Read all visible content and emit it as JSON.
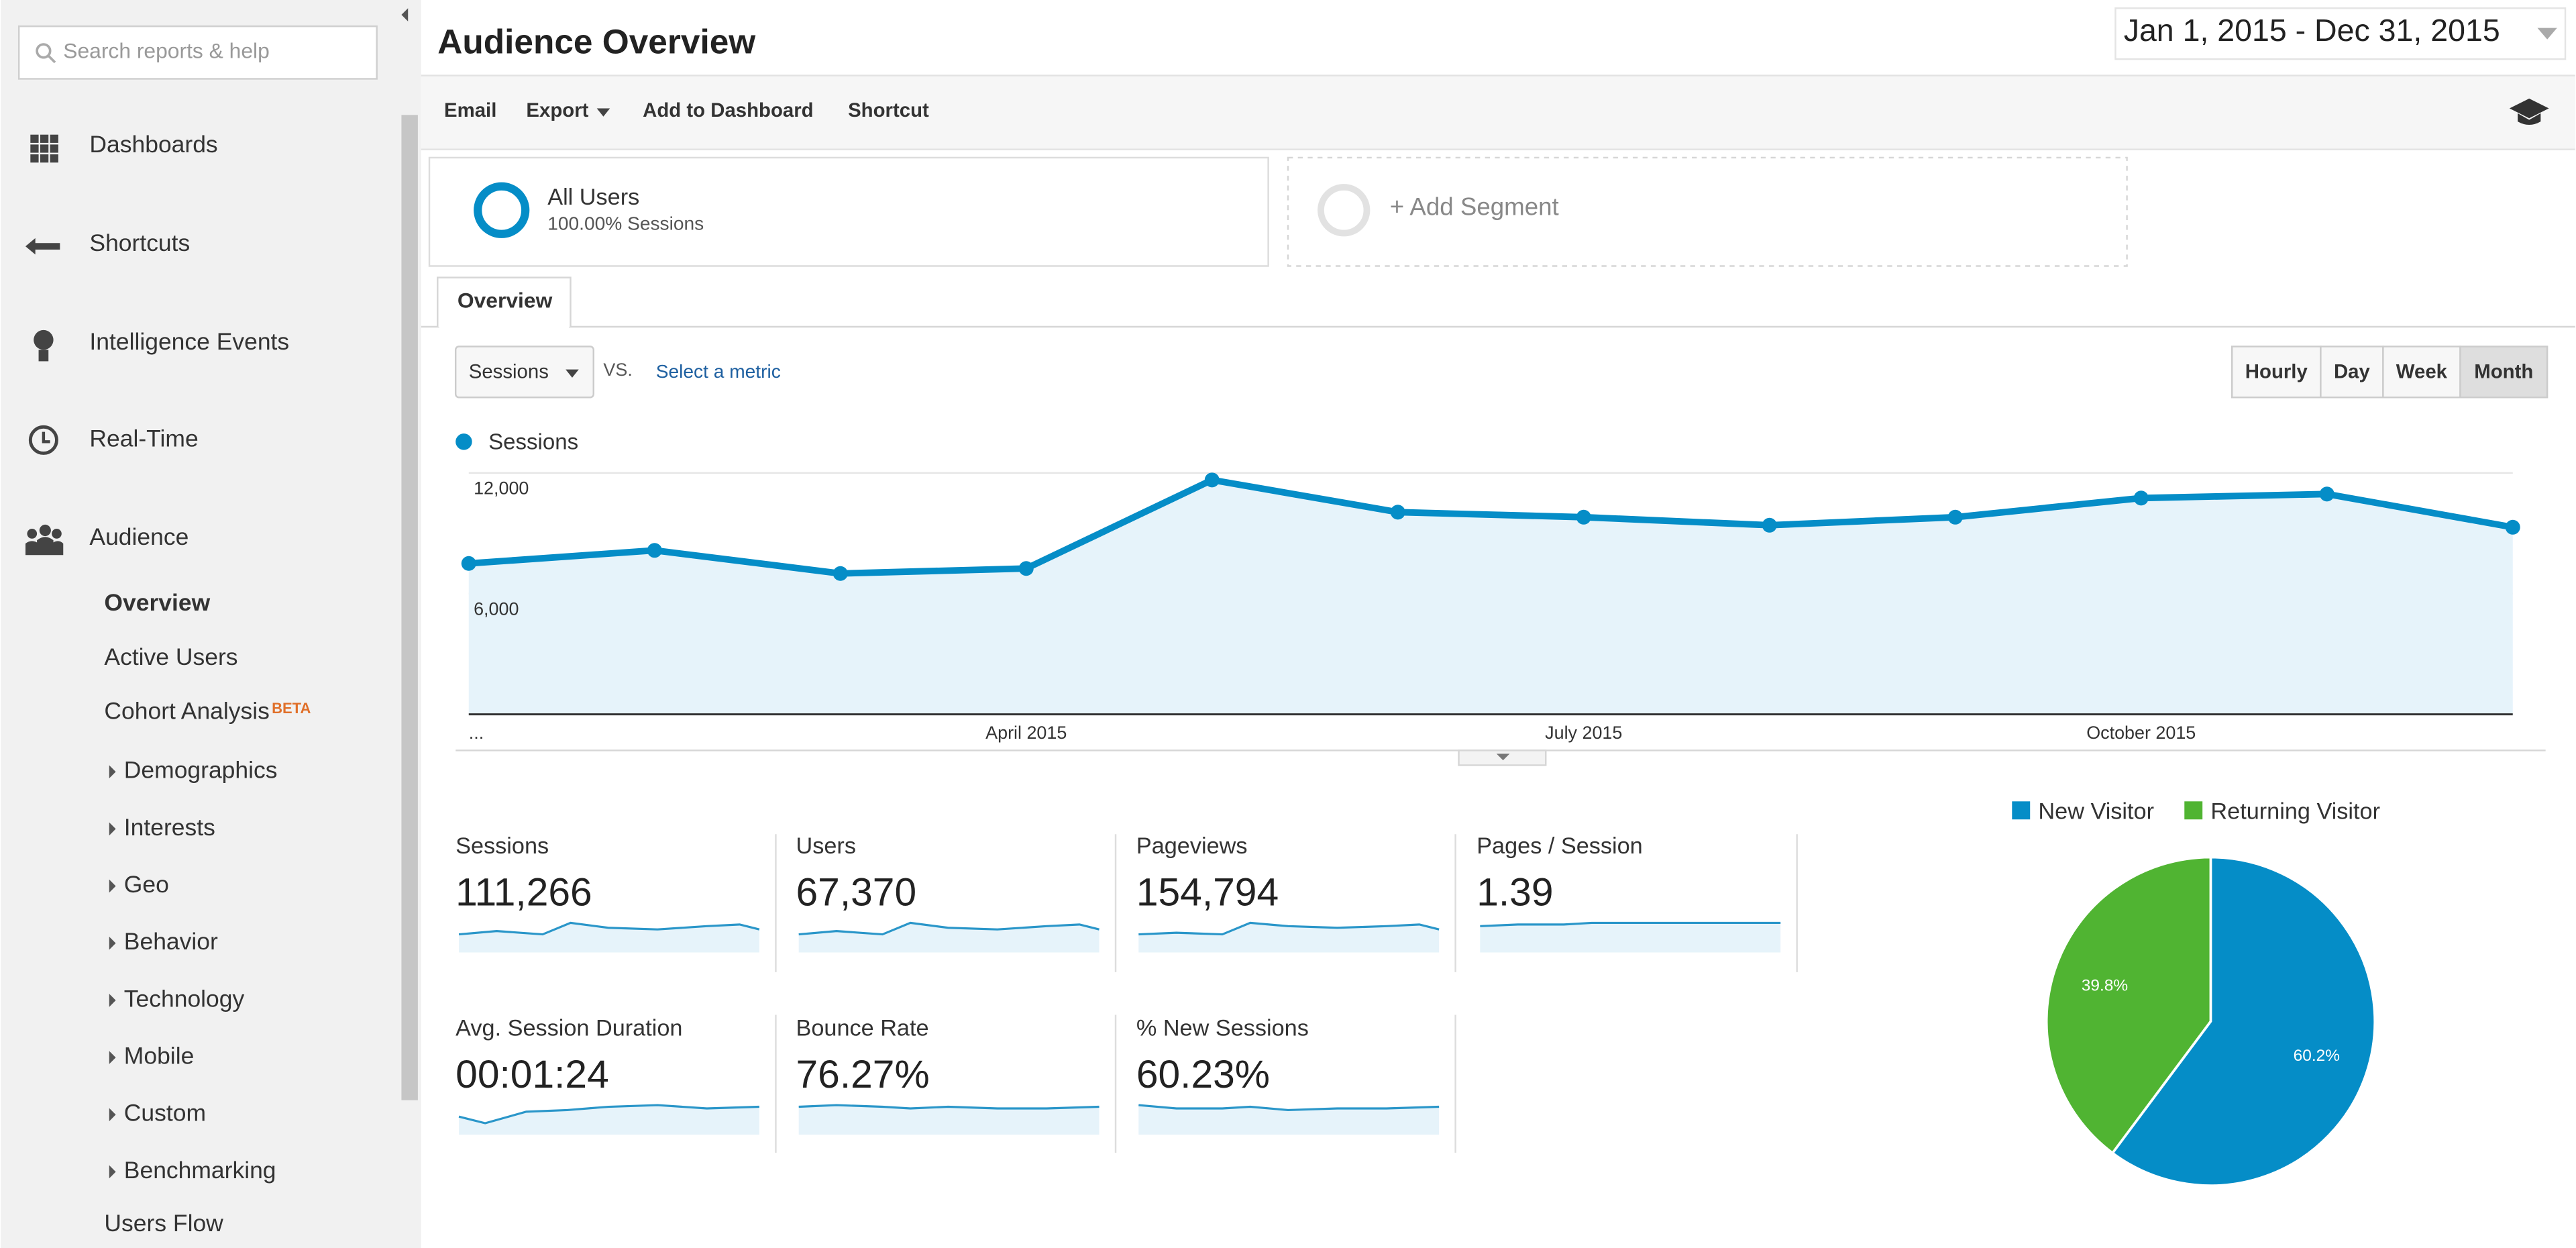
{
  "sidebar": {
    "search_placeholder": "Search reports & help",
    "nav": [
      "Dashboards",
      "Shortcuts",
      "Intelligence Events",
      "Real-Time",
      "Audience"
    ],
    "audience_items": [
      "Overview",
      "Active Users",
      "Cohort Analysis"
    ],
    "beta": "BETA",
    "expandable": [
      "Demographics",
      "Interests",
      "Geo",
      "Behavior",
      "Technology",
      "Mobile",
      "Custom",
      "Benchmarking"
    ],
    "users_flow": "Users Flow"
  },
  "header": {
    "title": "Audience Overview",
    "date_range": "Jan 1, 2015 - Dec 31, 2015"
  },
  "toolbar": [
    "Email",
    "Export",
    "Add to Dashboard",
    "Shortcut"
  ],
  "segments": {
    "all_users": "All Users",
    "all_users_sub": "100.00% Sessions",
    "add": "+ Add Segment"
  },
  "tab": "Overview",
  "controls": {
    "metric": "Sessions",
    "vs": "VS.",
    "select": "Select a metric",
    "granularity": [
      "Hourly",
      "Day",
      "Week",
      "Month"
    ],
    "active_index": 3
  },
  "chart": {
    "type": "line",
    "categories": [
      "...",
      null,
      null,
      "April 2015",
      null,
      null,
      "July 2015",
      null,
      null,
      "October 2015",
      null,
      null
    ],
    "series": [
      {
        "name": "Sessions",
        "color": "#058dc7",
        "values": [
          7500,
          8150,
          7000,
          7250,
          11650,
          10050,
          9800,
          9400,
          9800,
          10750,
          10950,
          9300
        ]
      }
    ],
    "ylim": [
      0,
      12000
    ],
    "yticks": [
      {
        "value": 6000,
        "label": "6,000"
      },
      {
        "value": 12000,
        "label": "12,000"
      }
    ],
    "grid": true,
    "area_color": "#e6f3fa"
  },
  "metrics": [
    {
      "label": "Sessions",
      "value": "111,266"
    },
    {
      "label": "Users",
      "value": "67,370"
    },
    {
      "label": "Pageviews",
      "value": "154,794"
    },
    {
      "label": "Pages / Session",
      "value": "1.39"
    },
    {
      "label": "Avg. Session Duration",
      "value": "00:01:24"
    },
    {
      "label": "Bounce Rate",
      "value": "76.27%"
    },
    {
      "label": "% New Sessions",
      "value": "60.23%"
    }
  ],
  "pie": {
    "type": "pie",
    "categories": [
      "New Visitor",
      "Returning Visitor"
    ],
    "colors": [
      "#058dc7",
      "#50b432"
    ],
    "values": [
      60.2,
      39.8
    ],
    "value_labels": [
      "60.2%",
      "39.8%"
    ]
  }
}
